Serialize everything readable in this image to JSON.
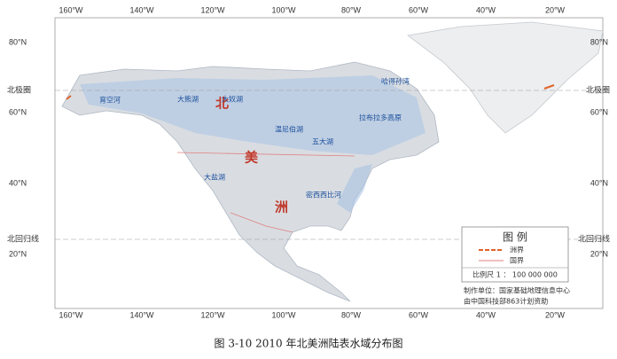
{
  "map": {
    "longitude_labels": [
      "160°W",
      "140°W",
      "120°W",
      "100°W",
      "80°W",
      "60°W",
      "40°W",
      "20°W"
    ],
    "latitude_labels": [
      "80°N",
      "60°N",
      "40°N",
      "20°N"
    ],
    "arctic_circle": "北极圈",
    "tropic_of_cancer": "北回归线",
    "continent_name": [
      "北",
      "美",
      "洲"
    ],
    "places": [
      "大熊湖",
      "大奴湖",
      "温尼伯湖",
      "哈得孙湾",
      "拉布拉多高原",
      "五大湖",
      "大盐湖",
      "密西西比河",
      "育空河"
    ],
    "legend": {
      "title": "图  例",
      "items": [
        "洲界",
        "国界"
      ],
      "scale": "比例尺  1 ： 100 000 000"
    },
    "credits": [
      "制作单位：国家基础地理信息中心",
      "由中国科技部863计划资助"
    ],
    "caption": "图 3-10  2010 年北美洲陆表水域分布图"
  }
}
